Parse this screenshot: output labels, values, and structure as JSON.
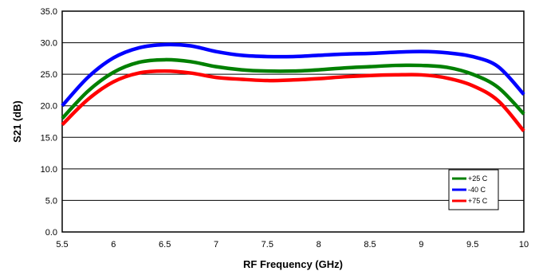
{
  "chart_data": {
    "type": "line",
    "title": "",
    "xlabel": "RF Frequency (GHz)",
    "ylabel": "S21 (dB)",
    "xlim": [
      5.5,
      10
    ],
    "ylim": [
      0,
      35
    ],
    "x_ticks": [
      "5.5",
      "6",
      "6.5",
      "7",
      "7.5",
      "8",
      "8.5",
      "9",
      "9.5",
      "10"
    ],
    "y_ticks": [
      "0.0",
      "5.0",
      "10.0",
      "15.0",
      "20.0",
      "25.0",
      "30.0",
      "35.0"
    ],
    "grid": "horizontal",
    "legend_position": "lower-right",
    "x": [
      5.5,
      5.75,
      6.0,
      6.25,
      6.5,
      6.75,
      7.0,
      7.25,
      7.5,
      7.75,
      8.0,
      8.25,
      8.5,
      8.75,
      9.0,
      9.25,
      9.5,
      9.75,
      10.0
    ],
    "series": [
      {
        "name": "+25 C",
        "color": "#008000",
        "values": [
          18.0,
          22.3,
          25.3,
          26.9,
          27.3,
          27.0,
          26.2,
          25.7,
          25.5,
          25.5,
          25.7,
          26.0,
          26.2,
          26.4,
          26.4,
          26.1,
          25.0,
          22.9,
          18.7
        ]
      },
      {
        "name": "-40 C",
        "color": "#0000ff",
        "values": [
          20.0,
          24.5,
          27.6,
          29.2,
          29.7,
          29.5,
          28.6,
          28.0,
          27.8,
          27.8,
          28.0,
          28.2,
          28.3,
          28.5,
          28.6,
          28.4,
          27.8,
          26.2,
          21.8
        ]
      },
      {
        "name": "+75 C",
        "color": "#ff0000",
        "values": [
          17.0,
          21.0,
          23.8,
          25.2,
          25.5,
          25.2,
          24.5,
          24.2,
          24.0,
          24.1,
          24.3,
          24.6,
          24.8,
          24.9,
          24.9,
          24.4,
          23.2,
          20.8,
          16.0
        ]
      }
    ]
  }
}
